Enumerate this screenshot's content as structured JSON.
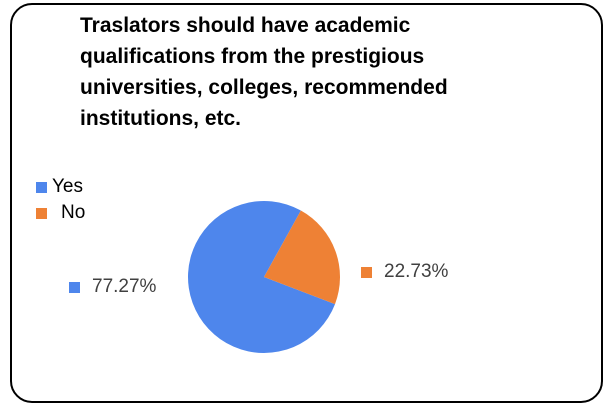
{
  "chart_data": {
    "type": "pie",
    "title": "Traslators should have academic qualifications from the prestigious universities, colleges, recommended institutions, etc.",
    "legend_position": "left",
    "slices": [
      {
        "label": "Yes",
        "value": 77.27,
        "display": "77.27%",
        "color": "#4E86EC"
      },
      {
        "label": "No",
        "value": 22.73,
        "display": "22.73%",
        "color": "#EE8135"
      }
    ]
  }
}
